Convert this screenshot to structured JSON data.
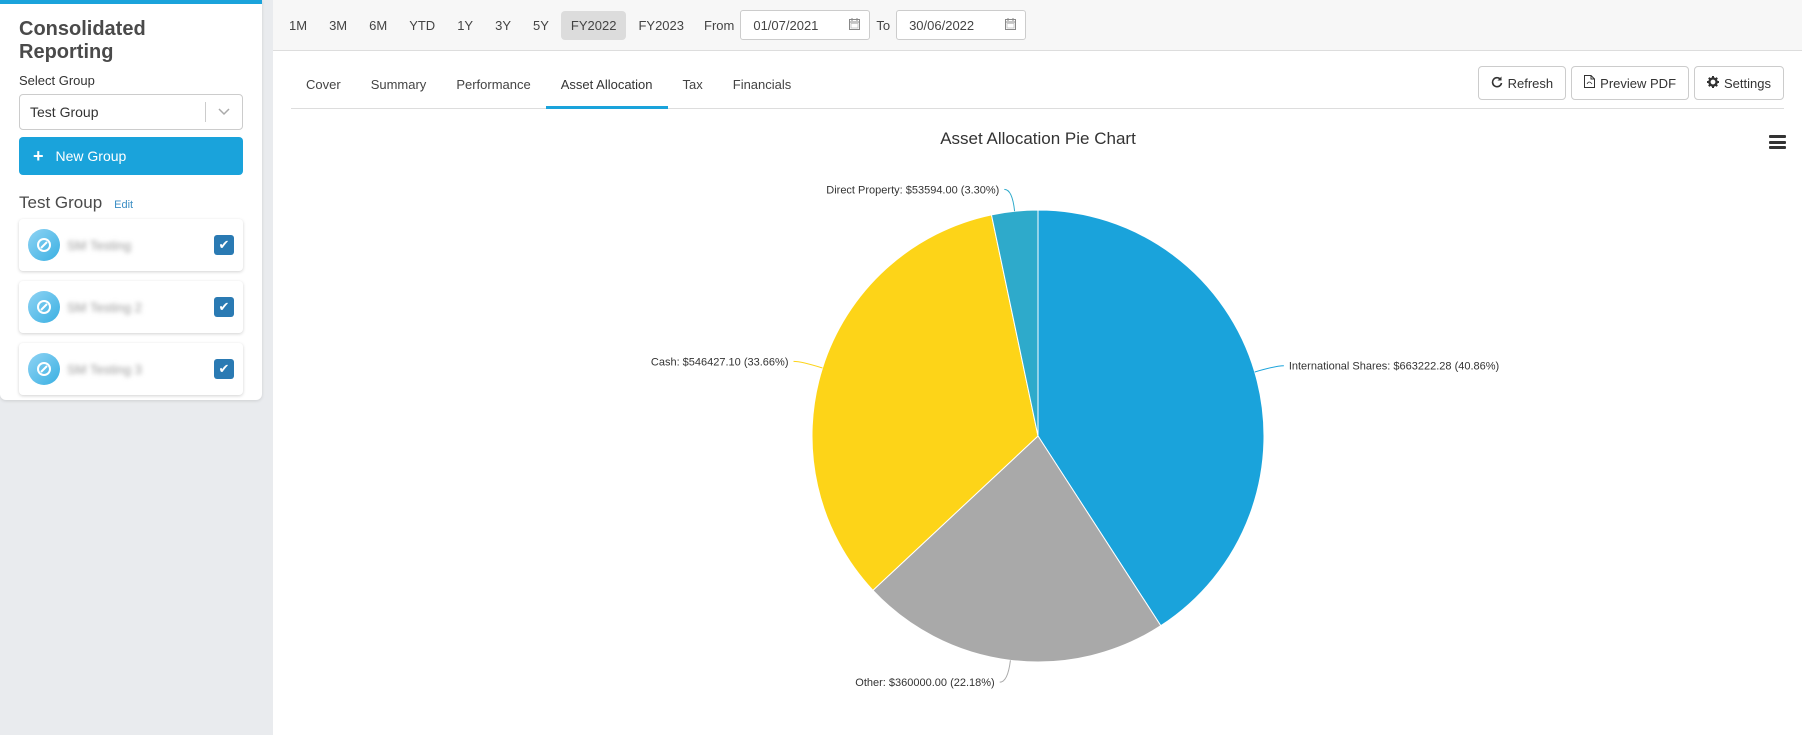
{
  "sidebar": {
    "title": "Consolidated Reporting",
    "select_label": "Select Group",
    "selected_group": "Test Group",
    "new_group_label": "New Group",
    "group_name": "Test Group",
    "edit_label": "Edit",
    "portfolios": [
      {
        "name": "SM Testing",
        "checked": true
      },
      {
        "name": "SM Testing 2",
        "checked": true
      },
      {
        "name": "SM Testing 3",
        "checked": true
      }
    ]
  },
  "toolbar": {
    "periods": [
      "1M",
      "3M",
      "6M",
      "YTD",
      "1Y",
      "3Y",
      "5Y",
      "FY2022",
      "FY2023"
    ],
    "active_period": "FY2022",
    "from_label": "From",
    "from_value": "01/07/2021",
    "to_label": "To",
    "to_value": "30/06/2022"
  },
  "tabs": {
    "items": [
      "Cover",
      "Summary",
      "Performance",
      "Asset Allocation",
      "Tax",
      "Financials"
    ],
    "active": "Asset Allocation"
  },
  "actions": {
    "refresh": "Refresh",
    "preview_pdf": "Preview PDF",
    "settings": "Settings"
  },
  "chart_data": {
    "type": "pie",
    "title": "Asset Allocation Pie Chart",
    "slices": [
      {
        "name": "International Shares",
        "value": 663222.28,
        "percent": 40.86,
        "label": "International Shares: $663222.28 (40.86%)",
        "color": "#1aa3db"
      },
      {
        "name": "Other",
        "value": 360000.0,
        "percent": 22.18,
        "label": "Other: $360000.00 (22.18%)",
        "color": "#a9a9a9"
      },
      {
        "name": "Cash",
        "value": 546427.1,
        "percent": 33.66,
        "label": "Cash: $546427.10 (33.66%)",
        "color": "#fdd418"
      },
      {
        "name": "Direct Property",
        "value": 53594.0,
        "percent": 3.3,
        "label": "Direct Property: $53594.00 (3.30%)",
        "color": "#2eaacb"
      }
    ],
    "legend": false
  }
}
